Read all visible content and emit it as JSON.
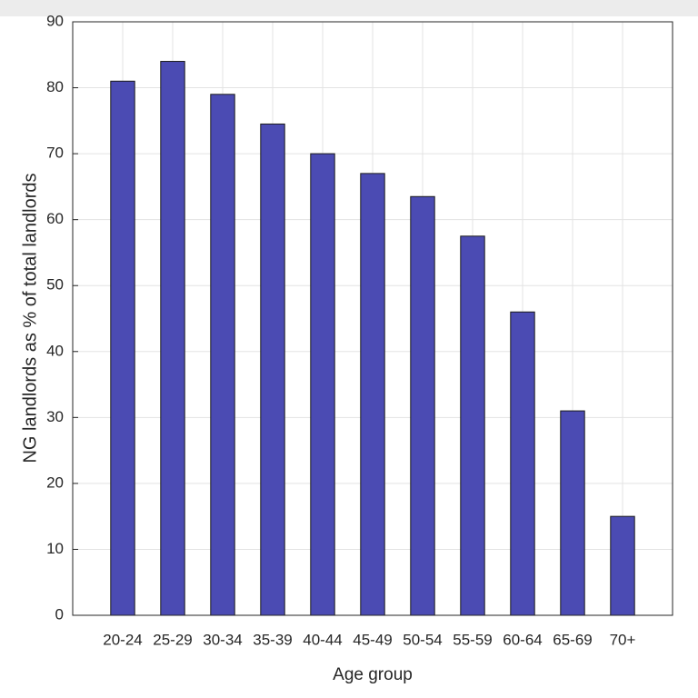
{
  "chart_data": {
    "type": "bar",
    "x_label": "Age group",
    "y_label": "NG landlords as % of total landlords",
    "categories": [
      "20-24",
      "25-29",
      "30-34",
      "35-39",
      "40-44",
      "45-49",
      "50-54",
      "55-59",
      "60-64",
      "65-69",
      "70+"
    ],
    "values": [
      81,
      84,
      79,
      74.5,
      70,
      67,
      63.5,
      57.5,
      46,
      31,
      15
    ],
    "color": "#4b4bb3",
    "ylim": [
      0,
      90
    ],
    "yticks": [
      0,
      10,
      20,
      30,
      40,
      50,
      60,
      70,
      80,
      90
    ],
    "grid": true
  }
}
